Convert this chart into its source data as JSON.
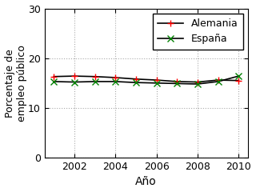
{
  "alemania_years": [
    2001,
    2002,
    2003,
    2004,
    2005,
    2006,
    2007,
    2008,
    2009,
    2010
  ],
  "alemania_values": [
    16.3,
    16.4,
    16.3,
    16.1,
    15.8,
    15.6,
    15.3,
    15.2,
    15.6,
    15.5
  ],
  "espana_years": [
    2001,
    2002,
    2003,
    2004,
    2005,
    2006,
    2007,
    2008,
    2009,
    2010
  ],
  "espana_values": [
    15.3,
    15.2,
    15.3,
    15.3,
    15.1,
    15.0,
    14.9,
    14.8,
    15.3,
    16.4
  ],
  "alemania_label": "Alemania",
  "espana_label": "España",
  "xlabel": "Año",
  "ylabel": "Porcentaje de\nempleo público",
  "ylim": [
    0,
    30
  ],
  "yticks": [
    0,
    10,
    20,
    30
  ],
  "xticks": [
    2002,
    2004,
    2006,
    2008,
    2010
  ],
  "alemania_line_color": "black",
  "alemania_marker_color": "red",
  "espana_line_color": "black",
  "espana_marker_color": "green",
  "grid_color": "#aaaaaa",
  "background_color": "white"
}
